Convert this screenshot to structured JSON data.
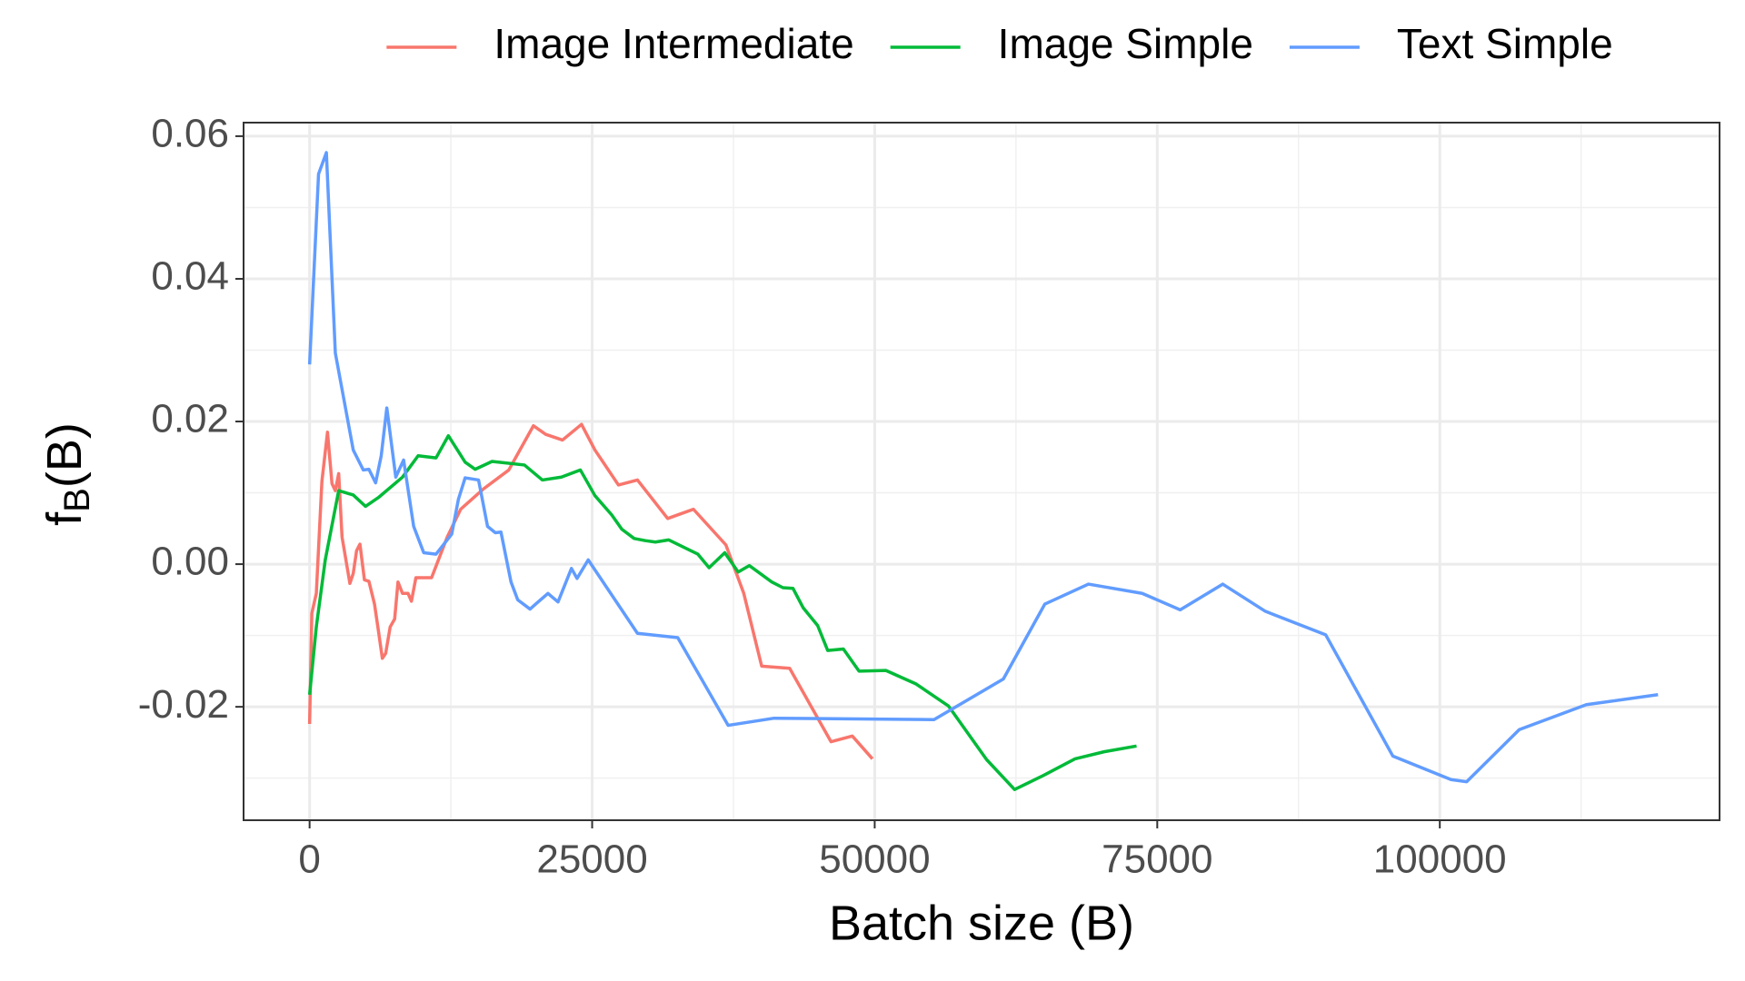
{
  "chart_data": {
    "type": "line",
    "xlabel": "Batch size (B)",
    "ylabel_parts": [
      "f",
      "B",
      "(B)"
    ],
    "xlim": [
      -5842,
      124752
    ],
    "ylim": [
      -0.0359,
      0.0619
    ],
    "xticks": [
      0,
      25000,
      50000,
      75000,
      100000
    ],
    "yticks": [
      -0.02,
      {
        "value": 0,
        "label": "0.00"
      },
      0.02,
      0.04,
      0.06
    ],
    "grid": true,
    "minor_grid": true,
    "legend": "top",
    "series": [
      {
        "name": "Image Intermediate",
        "color": "#F8766D",
        "x": [
          0,
          198,
          594,
          1089,
          1584,
          1980,
          2277,
          2574,
          2871,
          3565,
          3862,
          4159,
          4456,
          4851,
          5247,
          5743,
          6040,
          6436,
          6733,
          7129,
          7525,
          7822,
          8218,
          8713,
          9010,
          9406,
          10000,
          10792,
          12178,
          13366,
          15347,
          17624,
          19802,
          20891,
          22376,
          24059,
          25248,
          27327,
          29010,
          31683,
          33960,
          36832,
          38416,
          40000,
          42475,
          46139,
          48020,
          49802
        ],
        "values": [
          -0.0224,
          -0.0069,
          -0.0041,
          0.0116,
          0.0185,
          0.0113,
          0.0103,
          0.0127,
          0.0038,
          -0.0027,
          -0.0013,
          0.0019,
          0.0028,
          -0.0022,
          -0.0024,
          -0.0056,
          -0.0088,
          -0.0132,
          -0.0125,
          -0.0088,
          -0.0077,
          -0.0025,
          -0.0041,
          -0.0041,
          -0.0052,
          -0.0019,
          -0.0019,
          -0.0019,
          0.0038,
          0.0077,
          0.0105,
          0.0132,
          0.0194,
          0.0182,
          0.0174,
          0.0196,
          0.016,
          0.0111,
          0.0118,
          0.0064,
          0.0077,
          0.0027,
          -0.0041,
          -0.0143,
          -0.0146,
          -0.0249,
          -0.0241,
          -0.0273
        ]
      },
      {
        "name": "Image Simple",
        "color": "#00BA38",
        "x": [
          0,
          594,
          1386,
          2574,
          3862,
          4950,
          6139,
          8218,
          9604,
          11188,
          12277,
          13762,
          14653,
          16139,
          19010,
          20594,
          22277,
          23960,
          25248,
          26733,
          27624,
          28713,
          29703,
          30594,
          31782,
          34356,
          35347,
          36733,
          37921,
          38911,
          40891,
          41881,
          42772,
          43663,
          44950,
          45842,
          47228,
          48614,
          50990,
          53663,
          56535,
          59901,
          62376,
          64950,
          67723,
          70297,
          73168
        ],
        "values": [
          -0.0183,
          -0.0088,
          0.0006,
          0.0103,
          0.0097,
          0.0081,
          0.0094,
          0.0122,
          0.0152,
          0.0149,
          0.018,
          0.0143,
          0.0133,
          0.0144,
          0.0139,
          0.0118,
          0.0122,
          0.0132,
          0.0096,
          0.0069,
          0.0049,
          0.0036,
          0.0033,
          0.0031,
          0.0034,
          0.0014,
          -0.0005,
          0.0016,
          -0.0011,
          -0.0002,
          -0.0025,
          -0.0033,
          -0.0034,
          -0.0061,
          -0.0086,
          -0.0121,
          -0.0119,
          -0.015,
          -0.0149,
          -0.0168,
          -0.0199,
          -0.0274,
          -0.0316,
          -0.0296,
          -0.0273,
          -0.0263,
          -0.0255
        ]
      },
      {
        "name": "Text Simple",
        "color": "#619CFF",
        "x": [
          0,
          792,
          1485,
          2277,
          3862,
          4752,
          5247,
          5842,
          6337,
          6832,
          7624,
          8317,
          9208,
          10099,
          11188,
          12574,
          13168,
          13762,
          14950,
          15743,
          16436,
          16931,
          17822,
          18416,
          19505,
          20000,
          21089,
          21980,
          23168,
          23663,
          24653,
          29010,
          32574,
          37030,
          41089,
          55248,
          61386,
          65050,
          68911,
          73663,
          77030,
          80792,
          84554,
          89901,
          95842,
          100990,
          102376,
          107030,
          112970,
          119307
        ],
        "values": [
          0.028,
          0.0547,
          0.0577,
          0.0296,
          0.016,
          0.0132,
          0.0133,
          0.0114,
          0.0152,
          0.0219,
          0.0122,
          0.0146,
          0.0053,
          0.0016,
          0.0014,
          0.0042,
          0.0091,
          0.0121,
          0.0118,
          0.0053,
          0.0044,
          0.0045,
          -0.0025,
          -0.005,
          -0.0063,
          -0.0056,
          -0.0041,
          -0.0053,
          -0.0006,
          -0.002,
          0.0006,
          -0.0097,
          -0.0103,
          -0.0226,
          -0.0216,
          -0.0218,
          -0.0161,
          -0.0056,
          -0.0028,
          -0.0041,
          -0.0064,
          -0.0028,
          -0.0066,
          -0.0099,
          -0.0269,
          -0.0302,
          -0.0305,
          -0.0232,
          -0.0197,
          -0.0183
        ]
      }
    ]
  }
}
